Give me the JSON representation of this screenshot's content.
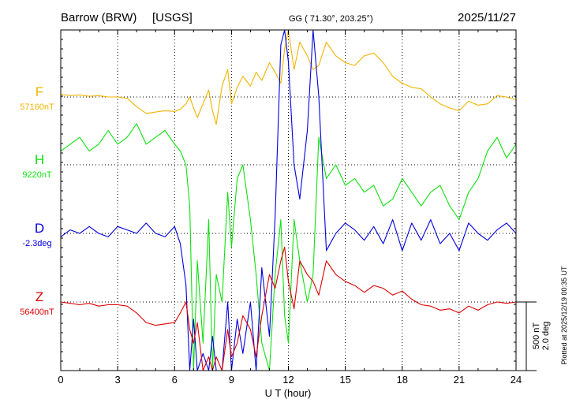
{
  "chart_data": {
    "type": "line",
    "header": {
      "station": "Barrow (BRW)",
      "source": "[USGS]",
      "coords": "GG ( 71.30°, 203.25°)",
      "date": "2025/11/27"
    },
    "xlabel": "U T (hour)",
    "xlim": [
      0,
      24
    ],
    "x_ticks": [
      "0",
      "3",
      "6",
      "9",
      "12",
      "15",
      "18",
      "21",
      "24"
    ],
    "scale_labels": [
      "500 nT",
      "2.0 deg"
    ],
    "plotted_note": "Plotted at 2025/12/19 00:35 UT",
    "colors": {
      "F": "#f0b400",
      "H": "#10e010",
      "D": "#0000dd",
      "Z": "#dd0000",
      "axis": "#000000"
    },
    "series": [
      {
        "name": "F",
        "baseline_label": "57160nT",
        "color": "#f0b400",
        "x": [
          0,
          0.5,
          1,
          1.5,
          2,
          2.5,
          3,
          3.5,
          4,
          4.5,
          5,
          5.5,
          6,
          6.3,
          6.6,
          6.8,
          7,
          7.2,
          7.5,
          7.8,
          8,
          8.2,
          8.5,
          8.8,
          9,
          9.3,
          9.6,
          10,
          10.3,
          10.6,
          11,
          11.3,
          11.6,
          11.8,
          12,
          12.3,
          12.6,
          13,
          13.3,
          13.6,
          14,
          14.5,
          15,
          15.5,
          16,
          16.5,
          17,
          17.5,
          18,
          18.5,
          19,
          19.5,
          20,
          20.5,
          21,
          21.5,
          22,
          22.5,
          23,
          23.5,
          24
        ],
        "y": [
          20,
          10,
          15,
          5,
          10,
          0,
          0,
          -10,
          -70,
          -120,
          -110,
          -100,
          -105,
          -90,
          -50,
          0,
          -80,
          -150,
          -50,
          50,
          -100,
          -200,
          80,
          200,
          -50,
          70,
          150,
          80,
          180,
          120,
          250,
          180,
          100,
          350,
          600,
          200,
          400,
          300,
          200,
          230,
          400,
          300,
          250,
          230,
          300,
          320,
          250,
          150,
          100,
          70,
          60,
          0,
          -50,
          -80,
          -100,
          -30,
          -60,
          -50,
          10,
          0,
          -20
        ]
      },
      {
        "name": "H",
        "baseline_label": "9220nT",
        "color": "#10e010",
        "x": [
          0,
          0.5,
          1,
          1.5,
          2,
          2.5,
          3,
          3.5,
          4,
          4.5,
          5,
          5.5,
          6,
          6.3,
          6.6,
          6.8,
          7,
          7.2,
          7.5,
          7.8,
          8,
          8.2,
          8.5,
          8.8,
          9,
          9.3,
          9.6,
          10,
          10.3,
          10.6,
          11,
          11.3,
          11.6,
          11.8,
          12,
          12.3,
          12.6,
          13,
          13.3,
          13.6,
          14,
          14.5,
          15,
          15.5,
          16,
          16.5,
          17,
          17.5,
          18,
          18.5,
          19,
          19.5,
          20,
          20.5,
          21,
          21.5,
          22,
          22.5,
          23,
          23.5,
          24
        ],
        "y": [
          100,
          150,
          200,
          100,
          150,
          250,
          150,
          200,
          300,
          150,
          200,
          250,
          150,
          100,
          0,
          -300,
          -1600,
          -700,
          -1300,
          -400,
          -1500,
          -800,
          -1000,
          -200,
          -600,
          -100,
          0,
          -400,
          -800,
          -1300,
          -1500,
          -800,
          -400,
          -1100,
          -1300,
          -400,
          -700,
          -1000,
          -800,
          200,
          -100,
          0,
          -150,
          -100,
          -200,
          -150,
          -300,
          -250,
          -100,
          -200,
          -300,
          -200,
          -150,
          -300,
          -400,
          -200,
          -100,
          100,
          200,
          50,
          150
        ]
      },
      {
        "name": "D",
        "baseline_label": "-2.3deg",
        "color": "#0000dd",
        "x": [
          0,
          0.5,
          1,
          1.5,
          2,
          2.5,
          3,
          3.5,
          4,
          4.5,
          5,
          5.5,
          6,
          6.3,
          6.6,
          6.8,
          7,
          7.2,
          7.5,
          7.8,
          8,
          8.2,
          8.5,
          8.8,
          9,
          9.3,
          9.6,
          10,
          10.3,
          10.6,
          11,
          11.3,
          11.6,
          11.8,
          12,
          12.3,
          12.6,
          13,
          13.3,
          13.6,
          14,
          14.5,
          15,
          15.5,
          16,
          16.5,
          17,
          17.5,
          18,
          18.5,
          19,
          19.5,
          20,
          20.5,
          21,
          21.5,
          22,
          22.5,
          23,
          23.5,
          24
        ],
        "y": [
          -0.1,
          0.1,
          0,
          0.2,
          0,
          -0.1,
          0.2,
          0.1,
          0,
          0.3,
          0,
          -0.1,
          0.2,
          -0.3,
          -1.5,
          -6,
          -2.5,
          -4,
          -3.5,
          -5,
          -3,
          -4,
          -5,
          -2,
          -4.5,
          -2.5,
          -3.5,
          -2,
          -4,
          -1,
          -3,
          0.5,
          5.5,
          9,
          5,
          2,
          1,
          3,
          6,
          4,
          -0.5,
          0,
          0.3,
          0.1,
          -0.2,
          0.2,
          -0.3,
          0.4,
          -0.5,
          0.3,
          -0.2,
          0.4,
          -0.3,
          0,
          -0.5,
          0.3,
          0,
          -0.2,
          0.1,
          0.3,
          0
        ]
      },
      {
        "name": "Z",
        "baseline_label": "56400nT",
        "color": "#dd0000",
        "x": [
          0,
          0.5,
          1,
          1.5,
          2,
          2.5,
          3,
          3.5,
          4,
          4.5,
          5,
          5.5,
          6,
          6.3,
          6.6,
          6.8,
          7,
          7.2,
          7.5,
          7.8,
          8,
          8.2,
          8.5,
          8.8,
          9,
          9.3,
          9.6,
          10,
          10.3,
          10.6,
          11,
          11.3,
          11.6,
          11.8,
          12,
          12.3,
          12.6,
          13,
          13.3,
          13.6,
          14,
          14.5,
          15,
          15.5,
          16,
          16.5,
          17,
          17.5,
          18,
          18.5,
          19,
          19.5,
          20,
          20.5,
          21,
          21.5,
          22,
          22.5,
          23,
          23.5,
          24
        ],
        "y": [
          0,
          -10,
          -20,
          -10,
          -30,
          -20,
          -20,
          -30,
          -80,
          -150,
          -170,
          -160,
          -150,
          -80,
          0,
          -200,
          -300,
          -150,
          -500,
          -400,
          -800,
          -400,
          -500,
          -200,
          -400,
          -300,
          -100,
          -200,
          -400,
          -100,
          200,
          100,
          300,
          400,
          150,
          -50,
          300,
          200,
          150,
          50,
          300,
          200,
          150,
          120,
          70,
          120,
          100,
          50,
          80,
          20,
          -20,
          -30,
          -60,
          -50,
          -80,
          -30,
          -60,
          -20,
          0,
          -10,
          0
        ]
      }
    ]
  }
}
